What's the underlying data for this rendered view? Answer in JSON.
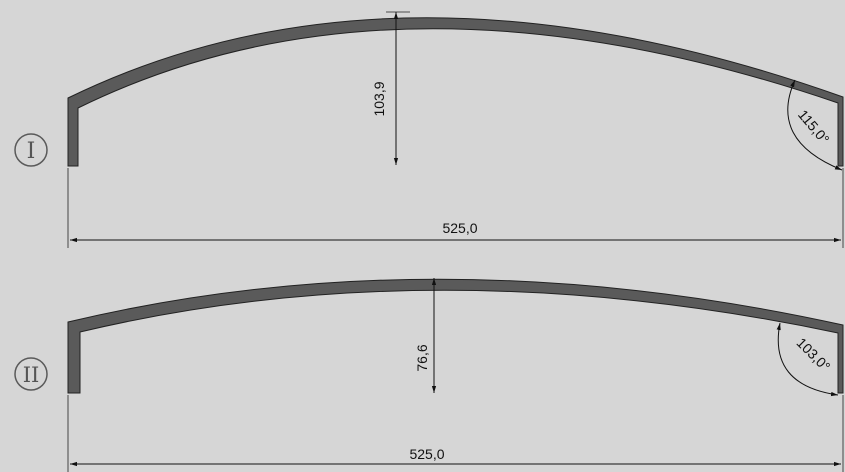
{
  "colors": {
    "background": "#d6d6d6",
    "profile_fill": "#5a5a5a",
    "profile_stroke": "#222222",
    "dimension": "#111111",
    "label_circle": "#5a5a5a"
  },
  "figures": [
    {
      "label": "I",
      "width_label": "525,0",
      "height_label": "103,9",
      "angle_label": "115,0°"
    },
    {
      "label": "II",
      "width_label": "525,0",
      "height_label": "76,6",
      "angle_label": "103,0°"
    }
  ]
}
